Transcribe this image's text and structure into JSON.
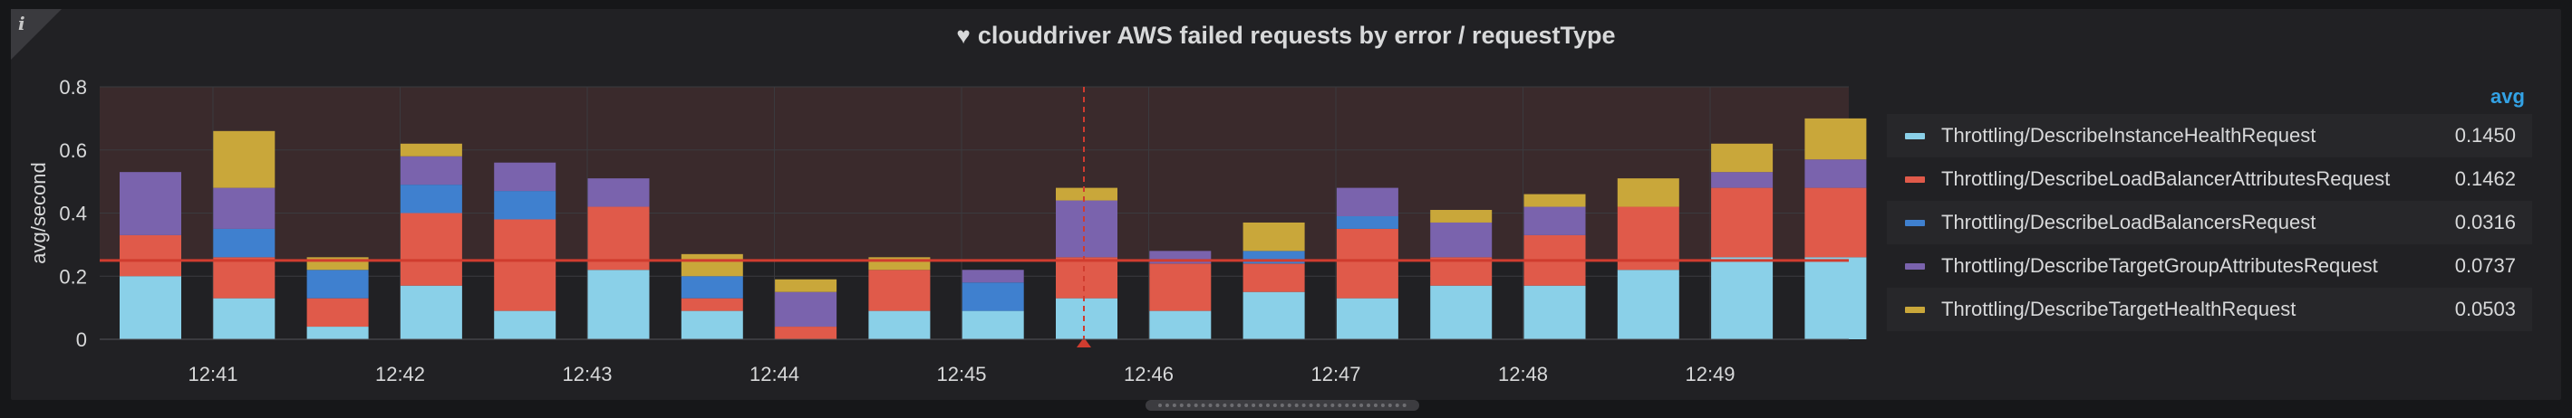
{
  "panel": {
    "info_label": "i",
    "title": "clouddriver AWS failed requests by error / requestType",
    "heart_icon": "♥"
  },
  "legend": {
    "avg_header": "avg",
    "items": [
      {
        "name": "Throttling/DescribeInstanceHealthRequest",
        "avg": "0.1450",
        "color": "#8ad0e8"
      },
      {
        "name": "Throttling/DescribeLoadBalancerAttributesRequest",
        "avg": "0.1462",
        "color": "#e05a4a"
      },
      {
        "name": "Throttling/DescribeLoadBalancersRequest",
        "avg": "0.0316",
        "color": "#3f80cf"
      },
      {
        "name": "Throttling/DescribeTargetGroupAttributesRequest",
        "avg": "0.0737",
        "color": "#7a63ad"
      },
      {
        "name": "Throttling/DescribeTargetHealthRequest",
        "avg": "0.0503",
        "color": "#c9a73a"
      }
    ]
  },
  "chart_data": {
    "type": "bar",
    "stacked": true,
    "ylabel": "avg/second",
    "ylim": [
      0,
      0.8
    ],
    "yticks": [
      "0",
      "0.2",
      "0.4",
      "0.6",
      "0.8"
    ],
    "xticks": [
      "12:41",
      "12:42",
      "12:43",
      "12:44",
      "12:45",
      "12:46",
      "12:47",
      "12:48",
      "12:49"
    ],
    "threshold": 0.25,
    "series": [
      {
        "name": "Throttling/DescribeInstanceHealthRequest",
        "color": "#8ad0e8",
        "values": [
          0.2,
          0.13,
          0.04,
          0.17,
          0.09,
          0.22,
          0.09,
          0.0,
          0.09,
          0.09,
          0.13,
          0.09,
          0.15,
          0.13,
          0.17,
          0.17,
          0.22,
          0.26,
          0.26
        ]
      },
      {
        "name": "Throttling/DescribeLoadBalancerAttributesRequest",
        "color": "#e05a4a",
        "values": [
          0.13,
          0.13,
          0.09,
          0.23,
          0.29,
          0.2,
          0.04,
          0.04,
          0.13,
          0.0,
          0.13,
          0.15,
          0.09,
          0.22,
          0.09,
          0.16,
          0.2,
          0.22,
          0.22
        ]
      },
      {
        "name": "Throttling/DescribeLoadBalancersRequest",
        "color": "#3f80cf",
        "values": [
          0.0,
          0.09,
          0.09,
          0.09,
          0.09,
          0.0,
          0.07,
          0.0,
          0.0,
          0.09,
          0.0,
          0.0,
          0.04,
          0.04,
          0.0,
          0.0,
          0.0,
          0.0,
          0.0
        ]
      },
      {
        "name": "Throttling/DescribeTargetGroupAttributesRequest",
        "color": "#7a63ad",
        "values": [
          0.2,
          0.13,
          0.0,
          0.09,
          0.09,
          0.09,
          0.0,
          0.11,
          0.0,
          0.04,
          0.18,
          0.04,
          0.0,
          0.09,
          0.11,
          0.09,
          0.0,
          0.05,
          0.09
        ]
      },
      {
        "name": "Throttling/DescribeTargetHealthRequest",
        "color": "#c9a73a",
        "values": [
          0.0,
          0.18,
          0.04,
          0.04,
          0.0,
          0.0,
          0.07,
          0.04,
          0.04,
          0.0,
          0.04,
          0.0,
          0.09,
          0.0,
          0.04,
          0.04,
          0.09,
          0.09,
          0.13
        ]
      }
    ]
  }
}
